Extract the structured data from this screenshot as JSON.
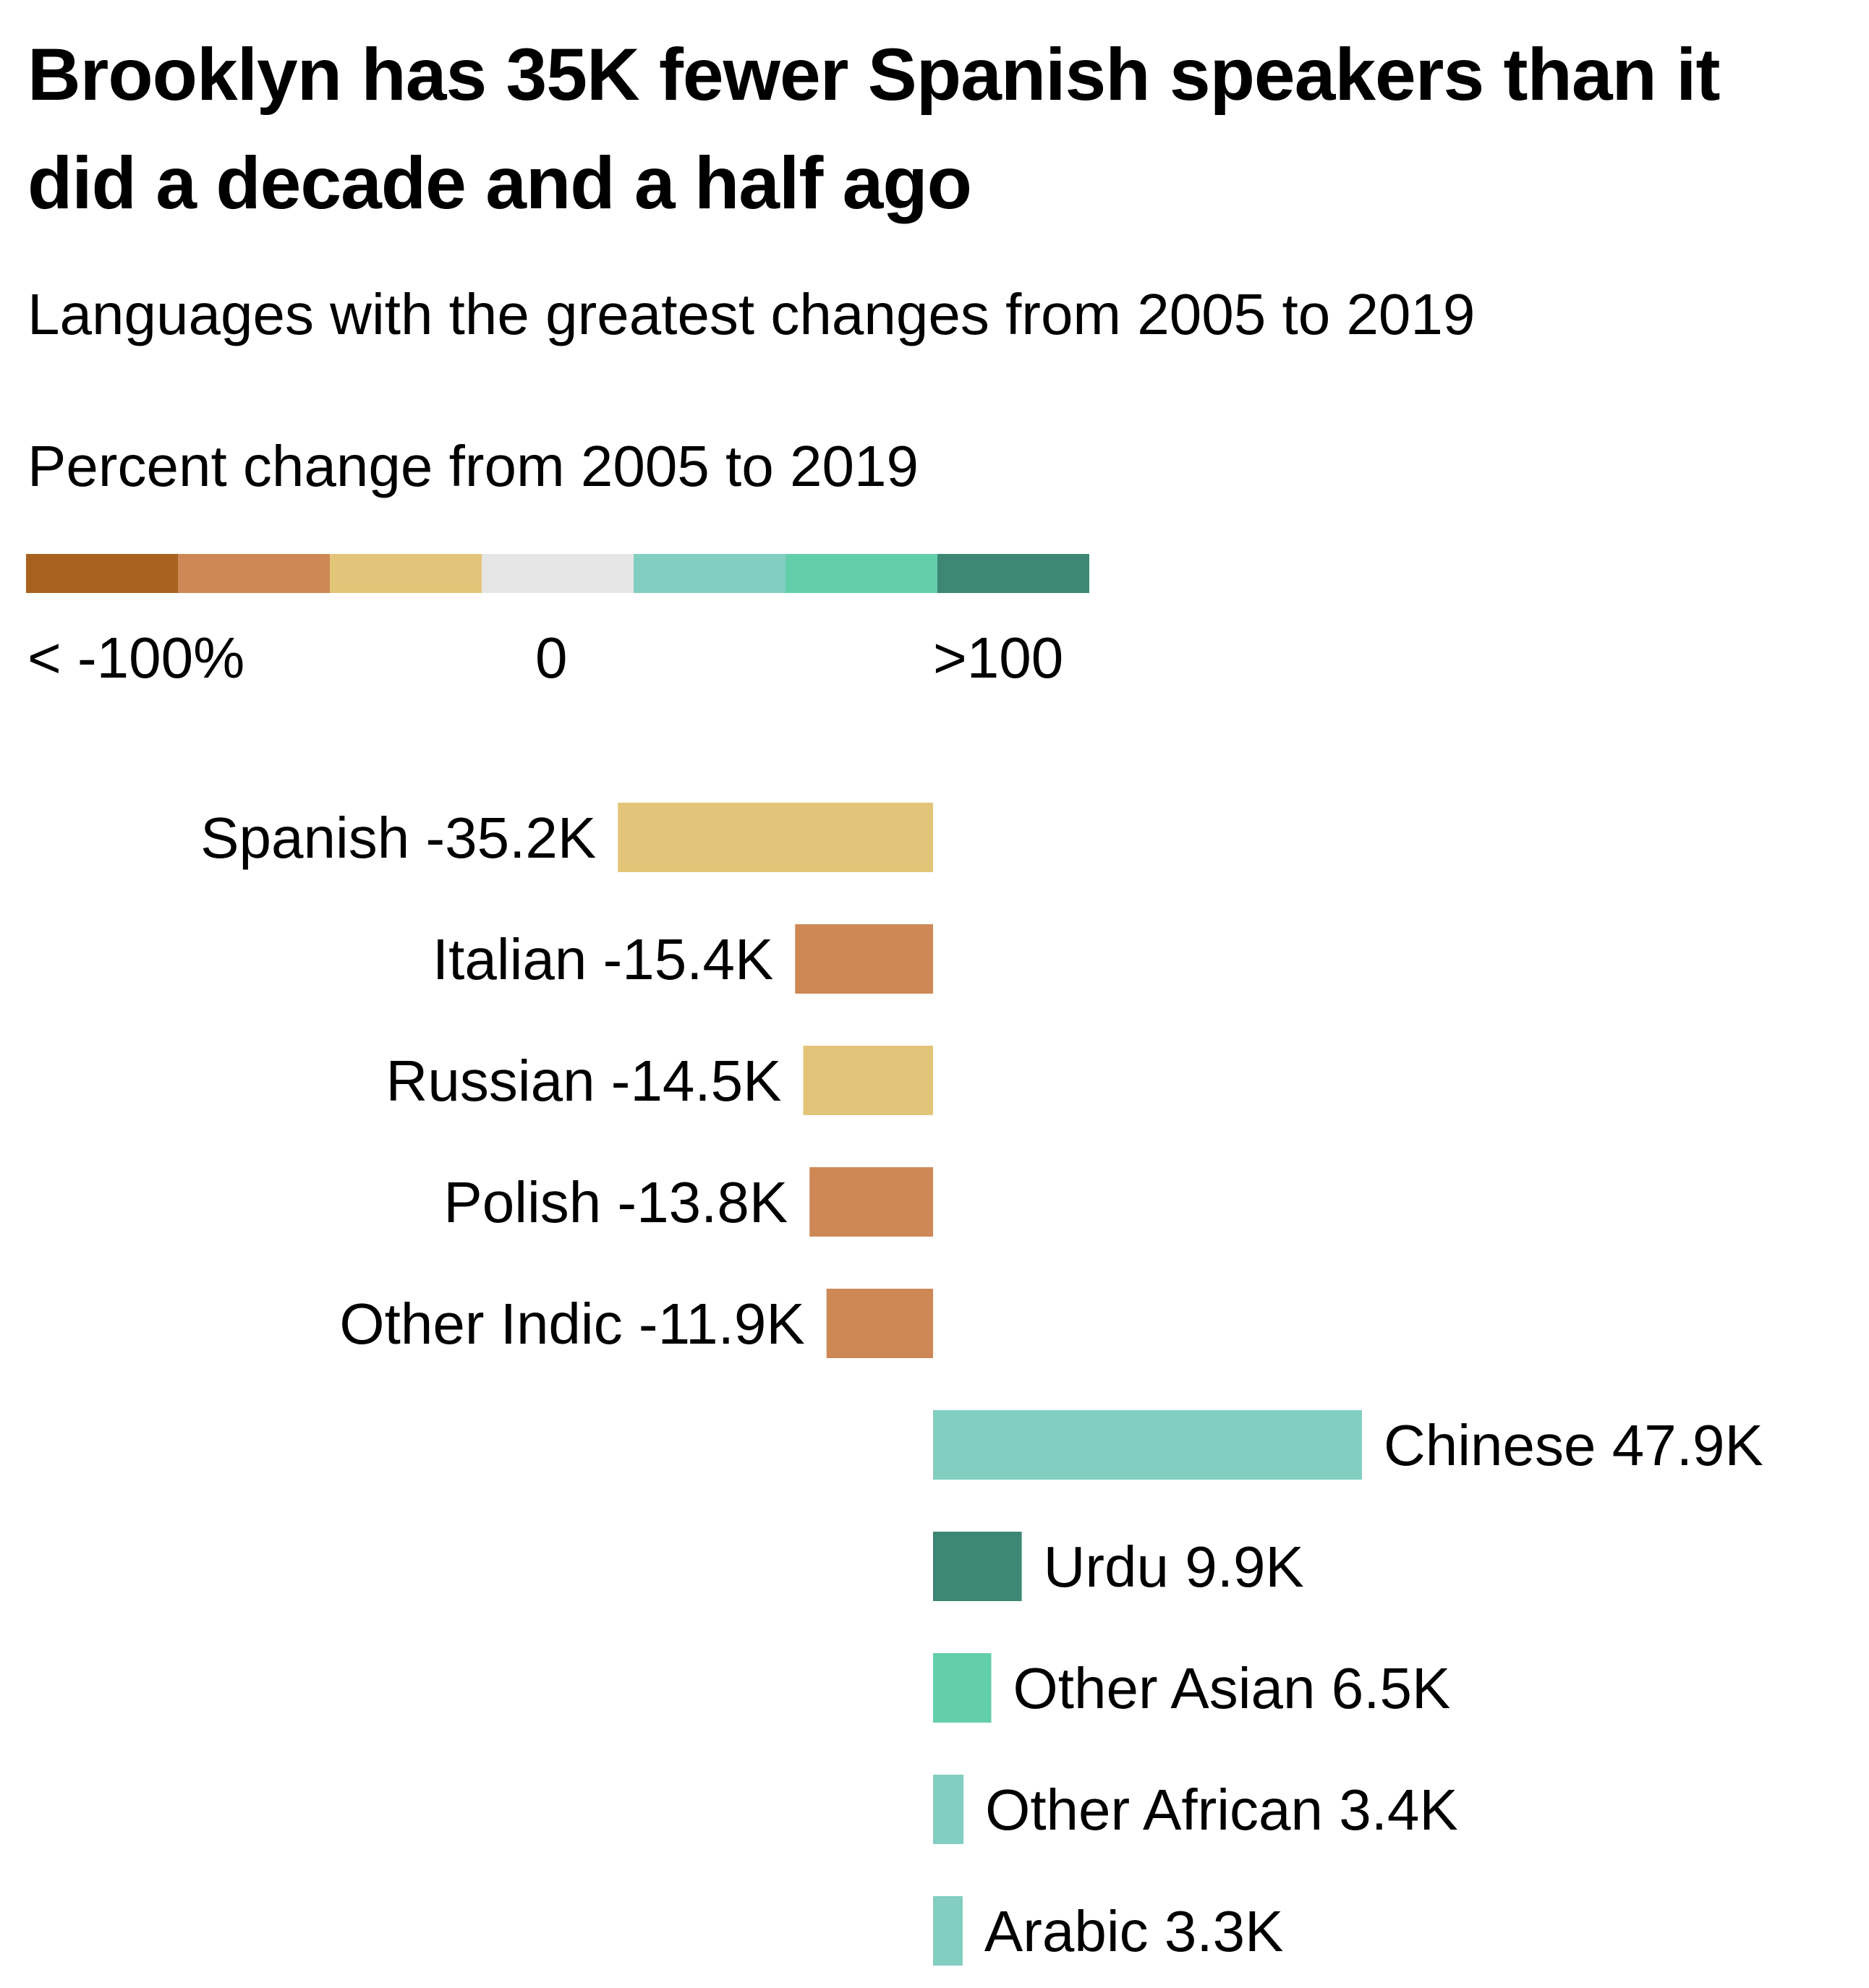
{
  "title": "Brooklyn has 35K fewer Spanish speakers than it did a decade and a half ago",
  "subtitle": "Languages with the greatest changes from 2005 to 2019",
  "legend": {
    "title": "Percent change from 2005 to 2019",
    "colors": [
      "#a9611f",
      "#cd8856",
      "#e3c579",
      "#e6e6e6",
      "#82cec0",
      "#63ceaa",
      "#3d8774"
    ],
    "labels": {
      "min": "< -100%",
      "mid": "0",
      "max": ">100"
    }
  },
  "chart_data": {
    "type": "bar",
    "orientation": "horizontal",
    "title": "Brooklyn has 35K fewer Spanish speakers than it did a decade and a half ago",
    "subtitle": "Languages with the greatest changes from 2005 to 2019",
    "value_unit": "K speakers",
    "categories": [
      "Spanish",
      "Italian",
      "Russian",
      "Polish",
      "Other Indic",
      "Chinese",
      "Urdu",
      "Other Asian",
      "Other African",
      "Arabic"
    ],
    "values": [
      -35.2,
      -15.4,
      -14.5,
      -13.8,
      -11.9,
      47.9,
      9.9,
      6.5,
      3.4,
      3.3
    ],
    "value_labels": [
      "-35.2K",
      "-15.4K",
      "-14.5K",
      "-13.8K",
      "-11.9K",
      "47.9K",
      "9.9K",
      "6.5K",
      "3.4K",
      "3.3K"
    ],
    "colors": [
      "#e3c579",
      "#cd8856",
      "#e3c579",
      "#cd8856",
      "#cd8856",
      "#82cec0",
      "#3d8774",
      "#63ceaa",
      "#82cec0",
      "#82cec0"
    ],
    "xlim": [
      -100,
      100
    ],
    "grid": false,
    "color_legend": {
      "title": "Percent change from 2005 to 2019",
      "min_label": "< -100%",
      "mid_label": "0",
      "max_label": ">100"
    }
  }
}
